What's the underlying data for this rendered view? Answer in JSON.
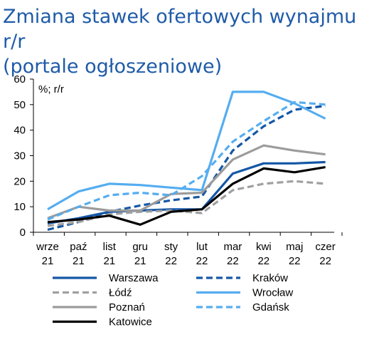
{
  "title_lines": [
    "Zmiana stawek ofertowych wynajmu r/r",
    "(portale ogłoszeniowe)"
  ],
  "chart_data": {
    "type": "line",
    "unit_label": "%; r/r",
    "categories": [
      [
        "wrze",
        "21"
      ],
      [
        "paź",
        "21"
      ],
      [
        "list",
        "21"
      ],
      [
        "gru",
        "21"
      ],
      [
        "sty",
        "22"
      ],
      [
        "lut",
        "22"
      ],
      [
        "mar",
        "22"
      ],
      [
        "kwi",
        "22"
      ],
      [
        "maj",
        "22"
      ],
      [
        "czer",
        "22"
      ]
    ],
    "ylim": [
      0,
      60
    ],
    "yticks": [
      0,
      10,
      20,
      30,
      40,
      50,
      60
    ],
    "grid": false,
    "legend_position": "bottom",
    "series": [
      {
        "name": "Warszawa",
        "color": "#1457a6",
        "dash": "solid",
        "values": [
          3.5,
          5.5,
          8.0,
          8.5,
          9.0,
          9.0,
          23.0,
          27.0,
          27.0,
          27.5
        ]
      },
      {
        "name": "Kraków",
        "color": "#1457a6",
        "dash": "dashed",
        "values": [
          1.0,
          4.0,
          8.0,
          10.5,
          12.5,
          14.0,
          32.0,
          41.5,
          48.0,
          49.5
        ]
      },
      {
        "name": "Łódź",
        "color": "#a0a0a0",
        "dash": "dashed",
        "values": [
          2.5,
          4.0,
          7.0,
          8.0,
          8.5,
          7.5,
          16.5,
          19.0,
          20.0,
          19.0
        ]
      },
      {
        "name": "Wrocław",
        "color": "#55adf0",
        "dash": "solid",
        "values": [
          9.0,
          16.0,
          19.0,
          18.5,
          17.5,
          16.5,
          55.0,
          55.0,
          50.5,
          44.5
        ]
      },
      {
        "name": "Poznań",
        "color": "#9c9c9c",
        "dash": "solid",
        "values": [
          5.5,
          10.0,
          8.5,
          8.5,
          15.0,
          15.5,
          28.5,
          34.0,
          32.0,
          30.5
        ]
      },
      {
        "name": "Gdańsk",
        "color": "#55adf0",
        "dash": "dashed",
        "values": [
          5.0,
          10.0,
          14.5,
          15.5,
          14.5,
          22.0,
          35.5,
          43.5,
          51.0,
          50.0
        ]
      },
      {
        "name": "Katowice",
        "color": "#000000",
        "dash": "solid",
        "values": [
          4.0,
          5.0,
          6.5,
          3.0,
          8.0,
          9.0,
          19.0,
          25.0,
          23.5,
          25.5
        ]
      }
    ]
  }
}
